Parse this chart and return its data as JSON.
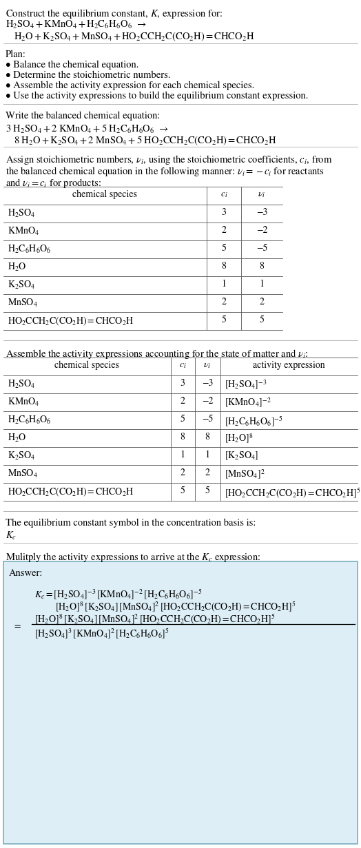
{
  "bg": "#ffffff",
  "fs": 10.5,
  "fs_small": 10.0,
  "separator_color": "#aaaaaa",
  "table_line_color": "#555555",
  "box_fill": "#ddeef6",
  "box_edge": "#7aafc0",
  "sections": {
    "title": "Construct the equilibrium constant, $K$, expression for:",
    "rxn1": "$\\mathrm{H_2SO_4 + KMnO_4 + H_2C_6H_6O_6}$  →",
    "rxn2": "$\\mathrm{H_2O + K_2SO_4 + MnSO_4 + HO_2CCH_2C(CO_2H){=}CHCO_2H}$",
    "plan_header": "Plan:",
    "plan_items": [
      "• Balance the chemical equation.",
      "• Determine the stoichiometric numbers.",
      "• Assemble the activity expression for each chemical species.",
      "• Use the activity expressions to build the equilibrium constant expression."
    ],
    "bal_header": "Write the balanced chemical equation:",
    "bal1": "$\\mathrm{3\\ H_2SO_4 + 2\\ KMnO_4 + 5\\ H_2C_6H_6O_6}$  →",
    "bal2": "$\\mathrm{8\\ H_2O + K_2SO_4 + 2\\ MnSO_4 + 5\\ HO_2CCH_2C(CO_2H){=}CHCO_2H}$",
    "stoich_intro1": "Assign stoichiometric numbers, $\\nu_i$, using the stoichiometric coefficients, $c_i$, from",
    "stoich_intro2": "the balanced chemical equation in the following manner: $\\nu_i = -c_i$ for reactants",
    "stoich_intro3": "and $\\nu_i = c_i$ for products:",
    "t1_hdr": [
      "chemical species",
      "$c_i$",
      "$\\nu_i$"
    ],
    "t1_rows": [
      [
        "$\\mathrm{H_2SO_4}$",
        "3",
        "−3"
      ],
      [
        "$\\mathrm{KMnO_4}$",
        "2",
        "−2"
      ],
      [
        "$\\mathrm{H_2C_6H_6O_6}$",
        "5",
        "−5"
      ],
      [
        "$\\mathrm{H_2O}$",
        "8",
        "8"
      ],
      [
        "$\\mathrm{K_2SO_4}$",
        "1",
        "1"
      ],
      [
        "$\\mathrm{MnSO_4}$",
        "2",
        "2"
      ],
      [
        "$\\mathrm{HO_2CCH_2C(CO_2H){=}CHCO_2H}$",
        "5",
        "5"
      ]
    ],
    "act_intro": "Assemble the activity expressions accounting for the state of matter and $\\nu_i$:",
    "t2_hdr": [
      "chemical species",
      "$c_i$",
      "$\\nu_i$",
      "activity expression"
    ],
    "t2_rows": [
      [
        "$\\mathrm{H_2SO_4}$",
        "3",
        "−3",
        "$[\\mathrm{H_2SO_4}]^{-3}$"
      ],
      [
        "$\\mathrm{KMnO_4}$",
        "2",
        "−2",
        "$[\\mathrm{KMnO_4}]^{-2}$"
      ],
      [
        "$\\mathrm{H_2C_6H_6O_6}$",
        "5",
        "−5",
        "$[\\mathrm{H_2C_6H_6O_6}]^{-5}$"
      ],
      [
        "$\\mathrm{H_2O}$",
        "8",
        "8",
        "$[\\mathrm{H_2O}]^8$"
      ],
      [
        "$\\mathrm{K_2SO_4}$",
        "1",
        "1",
        "$[\\mathrm{K_2SO_4}]$"
      ],
      [
        "$\\mathrm{MnSO_4}$",
        "2",
        "2",
        "$[\\mathrm{MnSO_4}]^2$"
      ],
      [
        "$\\mathrm{HO_2CCH_2C(CO_2H){=}CHCO_2H}$",
        "5",
        "5",
        "$[\\mathrm{HO_2CCH_2C(CO_2H){=}CHCO_2H}]^5$"
      ]
    ],
    "kc_intro": "The equilibrium constant symbol in the concentration basis is:",
    "kc_sym": "$K_c$",
    "mult_intro": "Mulitply the activity expressions to arrive at the $K_c$ expression:",
    "ans_label": "Answer:",
    "ans_line1": "$K_c = [\\mathrm{H_2SO_4}]^{-3}\\,[\\mathrm{KMnO_4}]^{-2}\\,[\\mathrm{H_2C_6H_6O_6}]^{-5}$",
    "ans_line2": "$[\\mathrm{H_2O}]^8\\,[\\mathrm{K_2SO_4}]\\,[\\mathrm{MnSO_4}]^2\\,[\\mathrm{HO_2CCH_2C(CO_2H){=}CHCO_2H}]^5$",
    "ans_num": "$[\\mathrm{H_2O}]^8\\,[\\mathrm{K_2SO_4}]\\,[\\mathrm{MnSO_4}]^2\\,[\\mathrm{HO_2CCH_2C(CO_2H){=}CHCO_2H}]^5$",
    "ans_den": "$[\\mathrm{H_2SO_4}]^3\\,[\\mathrm{KMnO_4}]^2\\,[\\mathrm{H_2C_6H_6O_6}]^5$"
  }
}
